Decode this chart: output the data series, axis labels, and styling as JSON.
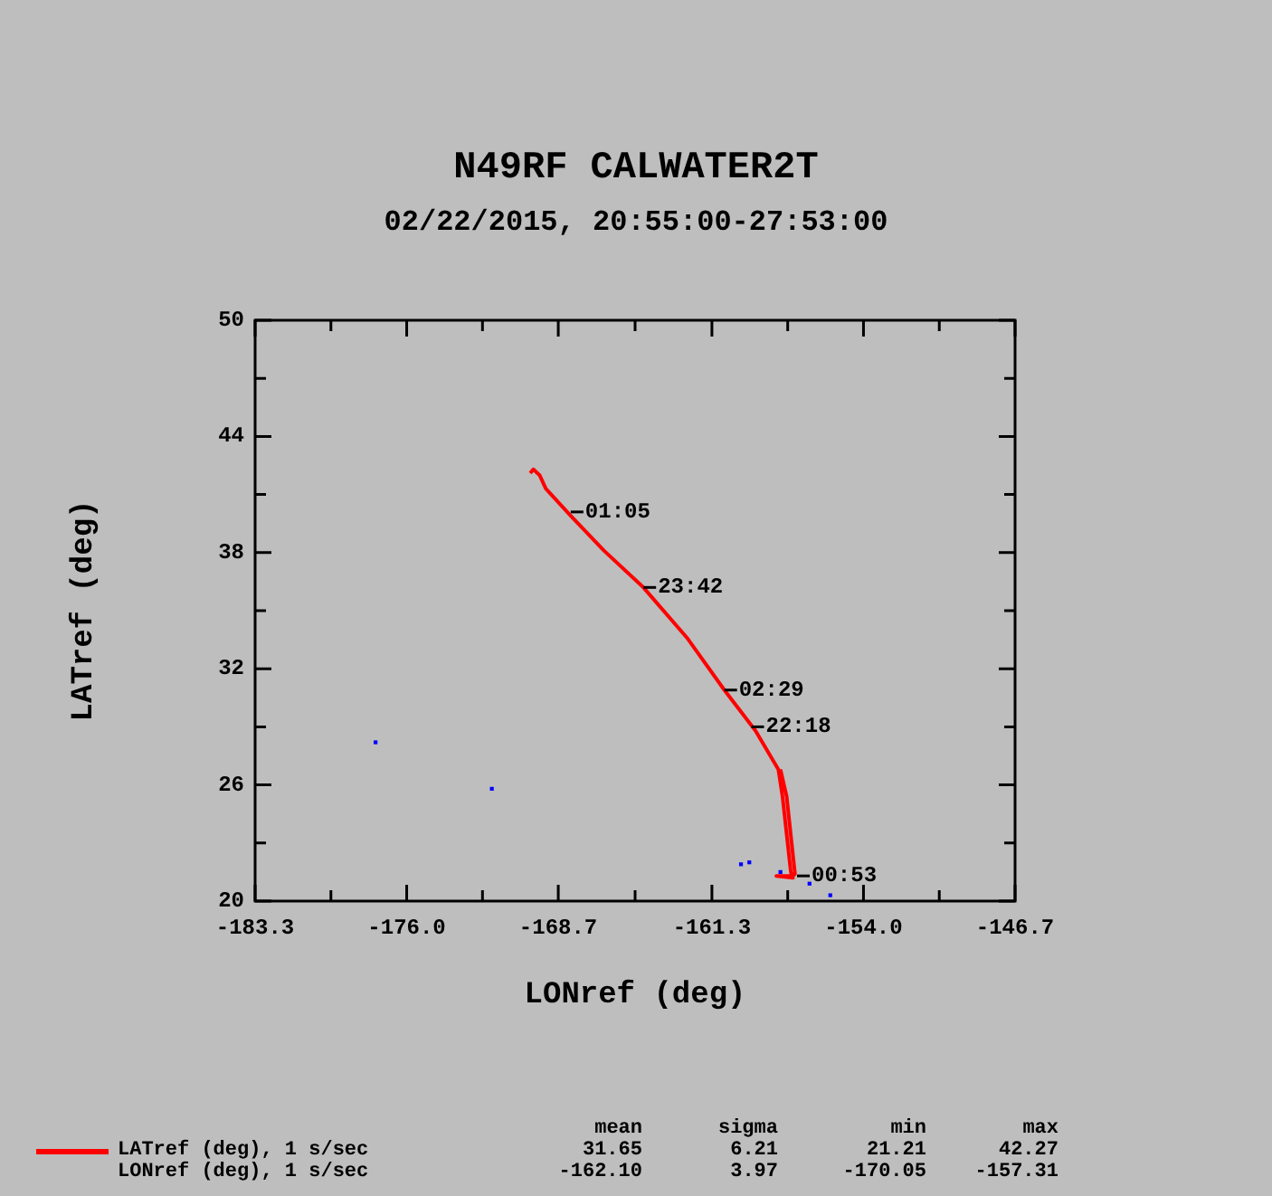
{
  "chart_data": {
    "type": "line",
    "title": "N49RF CALWATER2T",
    "subtitle": "02/22/2015, 20:55:00-27:53:00",
    "xlabel": "LONref (deg)",
    "ylabel": "LATref (deg)",
    "xlim": [
      -183.3,
      -146.7
    ],
    "xticks": [
      -183.3,
      {
        "value": -179.65,
        "label": null
      },
      {
        "value": -176.0,
        "label": "-176.0"
      },
      {
        "value": -172.35,
        "label": null
      },
      -168.7,
      {
        "value": -165.0,
        "label": null
      },
      -161.3,
      {
        "value": -157.65,
        "label": null
      },
      {
        "value": -154.0,
        "label": "-154.0"
      },
      {
        "value": -150.35,
        "label": null
      },
      -146.7
    ],
    "ylim": [
      20,
      50
    ],
    "yticks": [
      20,
      {
        "value": 23,
        "label": null
      },
      26,
      {
        "value": 29,
        "label": null
      },
      32,
      {
        "value": 35,
        "label": null
      },
      38,
      {
        "value": 41,
        "label": null
      },
      44,
      {
        "value": 47,
        "label": null
      },
      50
    ],
    "grid": false,
    "legend": "bottom",
    "series": [
      {
        "name": "LATref (deg), 1 s/sec",
        "color": "#ff0000",
        "marker": "none",
        "x": [
          -170.05,
          -169.9,
          -169.6,
          -169.3,
          -168.1,
          -166.5,
          -164.6,
          -162.5,
          -160.7,
          -159.2,
          -158.1,
          -157.9,
          -157.5,
          -157.4,
          -158.2,
          -157.4,
          -157.3,
          -157.7,
          -158.0
        ],
        "values": [
          42.1,
          42.3,
          42.0,
          41.3,
          39.9,
          38.1,
          36.2,
          33.6,
          30.9,
          28.8,
          26.8,
          25.4,
          21.5,
          21.2,
          21.3,
          21.3,
          21.4,
          25.4,
          26.8
        ]
      },
      {
        "type": "scatter",
        "color": "#0000ff",
        "marker": "square",
        "x": [
          -177.5,
          -171.9,
          -159.9,
          -159.5,
          -158.0,
          -156.6,
          -156.3,
          -155.6
        ],
        "values": [
          28.2,
          25.8,
          21.9,
          22.0,
          21.5,
          20.9,
          null,
          20.3
        ]
      }
    ],
    "annotations": [
      {
        "text": "01:05",
        "x": -168.1,
        "y": 40.1
      },
      {
        "text": "23:42",
        "x": -164.6,
        "y": 36.2
      },
      {
        "text": "02:29",
        "x": -160.7,
        "y": 30.9
      },
      {
        "text": "22:18",
        "x": -159.4,
        "y": 29.0
      },
      {
        "text": "00:53",
        "x": -157.2,
        "y": 21.3
      },
      "LONref (deg), 1 s/sec",
      "mean",
      "sigma",
      "min",
      "max",
      "31.65",
      "6.21",
      "21.21",
      "42.27",
      "-162.10",
      "3.97",
      "-170.05",
      "-157.31"
    ]
  }
}
